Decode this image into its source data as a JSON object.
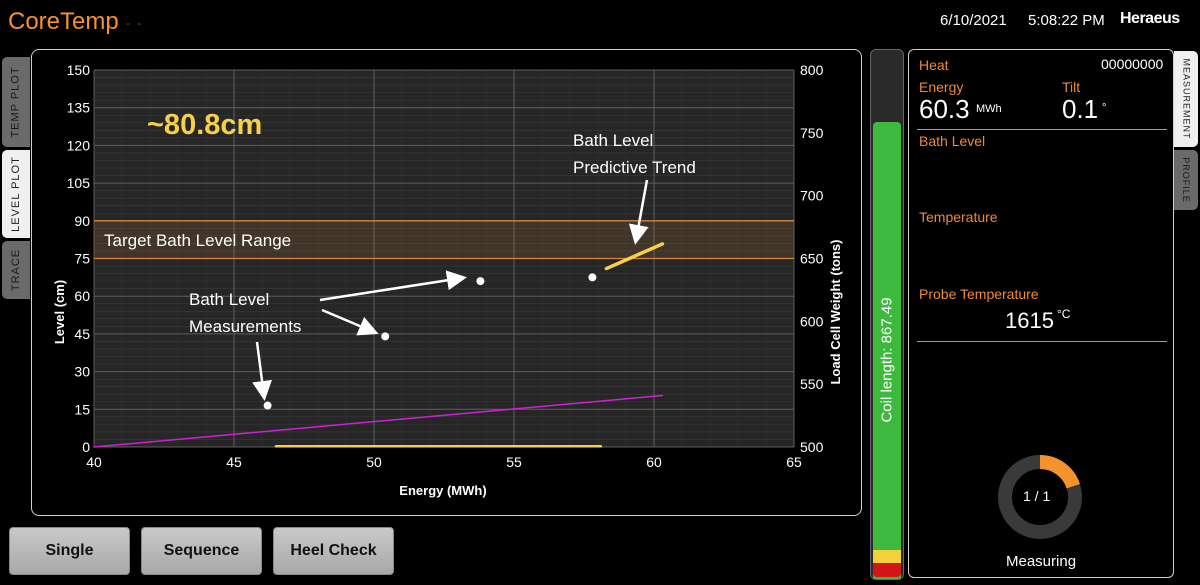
{
  "header": {
    "app_title": "CoreTemp",
    "date": "6/10/2021",
    "time": "5:08:22 PM",
    "logo_text": "Heraeus"
  },
  "left_tabs": [
    {
      "label": "TEMP PLOT",
      "active": false
    },
    {
      "label": "LEVEL PLOT",
      "active": true
    },
    {
      "label": "TRACE",
      "active": false
    }
  ],
  "chart": {
    "big_readout": "~80.8cm",
    "annotations": {
      "trend_line1": "Bath Level",
      "trend_line2": "Predictive Trend",
      "range_label": "Target Bath Level Range",
      "meas_line1": "Bath Level",
      "meas_line2": "Measurements"
    }
  },
  "chart_data": {
    "type": "scatter",
    "xlabel": "Energy (MWh)",
    "ylabel": "Level (cm)",
    "y2label": "Load Cell Weight  (tons)",
    "xlim": [
      40,
      65
    ],
    "ylim": [
      0,
      150
    ],
    "y2lim": [
      500,
      800
    ],
    "x_ticks": [
      40,
      45,
      50,
      55,
      60,
      65
    ],
    "y_ticks": [
      0,
      15,
      30,
      45,
      60,
      75,
      90,
      105,
      120,
      135,
      150
    ],
    "y2_ticks": [
      500,
      550,
      600,
      650,
      700,
      750,
      800
    ],
    "target_range": [
      75,
      90
    ],
    "series": [
      {
        "name": "Bath Level Measurements",
        "points": [
          [
            46.2,
            16.5
          ],
          [
            50.4,
            44
          ],
          [
            53.8,
            66
          ],
          [
            57.8,
            67.5
          ]
        ]
      },
      {
        "name": "Bath Level Predictive Trend",
        "points": [
          [
            58.3,
            71
          ],
          [
            60.3,
            80.8
          ]
        ]
      },
      {
        "points": [
          [
            40,
            0
          ],
          [
            60.3,
            20.5
          ]
        ]
      },
      {
        "points": [
          [
            46.5,
            0.3
          ],
          [
            58.1,
            0.3
          ]
        ]
      }
    ],
    "colors": {
      "measure": "#ffffff",
      "trend": "#f5d04a",
      "line": "#d21fd6",
      "bottom": "#f5d04a",
      "range": "#d4853a"
    }
  },
  "coil": {
    "label": "Coil length: 867.49",
    "green_color": "#3dba3d",
    "yellow_color": "#f3d13c",
    "red_color": "#d41515"
  },
  "panel": {
    "heat_label": "Heat",
    "heat_value": "00000000",
    "energy_label": "Energy",
    "energy_value": "60.3",
    "energy_unit": "MWh",
    "tilt_label": "Tilt",
    "tilt_value": "0.1",
    "tilt_unit": "°",
    "bath_level_label": "Bath Level",
    "temperature_label": "Temperature",
    "probe_temp_label": "Probe Temperature",
    "probe_temp_value": "1615",
    "probe_temp_unit": "°C",
    "progress_text": "1 / 1",
    "progress_fraction": 0.2,
    "status": "Measuring"
  },
  "right_tabs": [
    {
      "label": "MEASUREMENT",
      "active": true
    },
    {
      "label": "PROFILE",
      "active": false
    }
  ],
  "buttons": {
    "single": "Single",
    "sequence": "Sequence",
    "heel_check": "Heel Check"
  }
}
